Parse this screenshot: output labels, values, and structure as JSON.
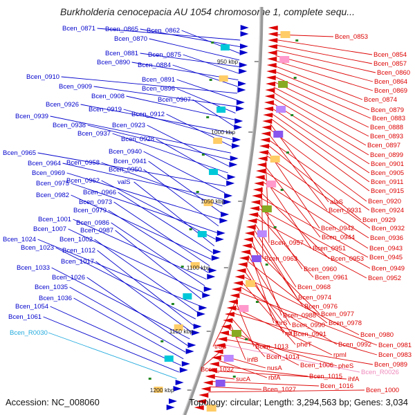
{
  "title": "Burkholderia cenocepacia AU 1054 chromosome 1, complete sequ...",
  "footer": {
    "accession": "Accession: NC_008060",
    "summary": "Topology: circular; Length: 3,294,563 bp; Genes: 3,034"
  },
  "colors": {
    "left_gene": "#0000cc",
    "left_rna": "#22aadd",
    "right_gene": "#dd0000",
    "right_rna": "#ee88bb",
    "backbone": "#999999"
  },
  "ticks": [
    "950 kbp",
    "1000 kbp",
    "1050 kbp",
    "1100 kbp",
    "1150 kbp",
    "1200 kbp"
  ],
  "left_labels": [
    "Bcen_0871",
    "Bcen_0865",
    "Bcen_0862",
    "Bcen_0870",
    "Bcen_0881",
    "Bcen_0875",
    "Bcen_0890",
    "Bcen_0884",
    "Bcen_0910",
    "Bcen_0891",
    "Bcen_0909",
    "Bcen_0896",
    "Bcen_0908",
    "Bcen_0907",
    "Bcen_0926",
    "Bcen_0919",
    "Bcen_0912",
    "Bcen_0939",
    "Bcen_0938",
    "Bcen_0923",
    "Bcen_0937",
    "Bcen_0928",
    "Bcen_0965",
    "Bcen_0940",
    "Bcen_0964",
    "Bcen_0958",
    "Bcen_0941",
    "Bcen_0969",
    "Bcen_0950",
    "Bcen_0975",
    "Bcen_0962",
    "valS",
    "Bcen_0966",
    "Bcen_0982",
    "Bcen_0973",
    "Bcen_0979",
    "Bcen_1001",
    "Bcen_0986",
    "Bcen_1007",
    "Bcen_0987",
    "Bcen_1024",
    "Bcen_1002",
    "Bcen_1023",
    "Bcen_1012",
    "Bcen_1017",
    "Bcen_1033",
    "Bcen_1026",
    "Bcen_1035",
    "Bcen_1036",
    "Bcen_1054",
    "Bcen_1061",
    "Bcen_R0030"
  ],
  "right_labels": [
    "Bcen_0853",
    "Bcen_0854",
    "Bcen_0857",
    "Bcen_0860",
    "Bcen_0864",
    "Bcen_0869",
    "Bcen_0874",
    "Bcen_0879",
    "Bcen_0883",
    "Bcen_0888",
    "Bcen_0893",
    "Bcen_0897",
    "Bcen_0899",
    "Bcen_0901",
    "Bcen_0905",
    "Bcen_0911",
    "Bcen_0915",
    "alaS",
    "Bcen_0920",
    "Bcen_0931",
    "Bcen_0924",
    "Bcen_0929",
    "Bcen_0942",
    "Bcen_0932",
    "Bcen_0957",
    "Bcen_0944",
    "Bcen_0936",
    "Bcen_0951",
    "Bcen_0943",
    "Bcen_0963",
    "Bcen_0953",
    "Bcen_0945",
    "Bcen_0960",
    "Bcen_0949",
    "Bcen_0961",
    "Bcen_0952",
    "Bcen_0968",
    "Bcen_0974",
    "Bcen_0976",
    "Bcen_0988",
    "Bcen_0977",
    "thrS",
    "Bcen_0990",
    "Bcen_0978",
    "rplT",
    "Bcen_0991",
    "Bcen_0980",
    "pheT",
    "Bcen_0992",
    "Bcen_0981",
    "truB",
    "Bcen_1013",
    "rpmI",
    "Bcen_0983",
    "Bcen_1014",
    "infB",
    "Bcen_1006",
    "pheS",
    "Bcen_0989",
    "Bcen_R0026",
    "Bcen_1032",
    "nusA",
    "rbfA",
    "Bcen_1015",
    "ihfA",
    "sucA",
    "Bcen_1016",
    "Bcen_1027",
    "Bcen_1000"
  ]
}
